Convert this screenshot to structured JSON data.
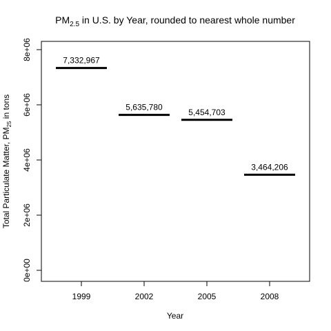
{
  "chart_data": {
    "type": "step",
    "title": {
      "prefix": "PM",
      "subscript": "2.5",
      "rest": " in U.S. by Year, rounded to nearest whole number"
    },
    "xlabel": "Year",
    "ylabel": {
      "prefix": "Total Particulate Matter, PM",
      "subscript": "25",
      "rest": " in tons"
    },
    "categories": [
      "1999",
      "2002",
      "2005",
      "2008"
    ],
    "values": [
      7332967,
      5635780,
      5454703,
      3464206
    ],
    "value_labels": [
      "7,332,967",
      "5,635,780",
      "5,454,703",
      "3,464,206"
    ],
    "ylim": [
      0,
      8000000
    ],
    "yticks": [
      0,
      2000000,
      4000000,
      6000000,
      8000000
    ],
    "ytick_labels": [
      "0e+00",
      "2e+06",
      "4e+06",
      "6e+06",
      "8e+06"
    ],
    "grid": false,
    "legend": "none",
    "colors": {
      "line": "#000000",
      "axis": "#000000"
    }
  }
}
